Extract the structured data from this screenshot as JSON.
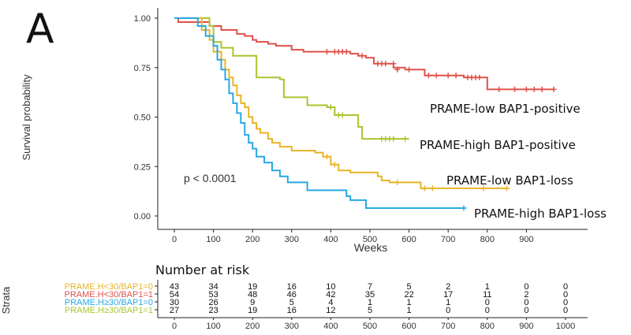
{
  "panel_label": "A",
  "chart_data": {
    "type": "line",
    "subtype": "kaplan-meier",
    "xlabel": "Weeks",
    "ylabel": "Survival probability",
    "xlim": [
      -40,
      1050
    ],
    "ylim": [
      -0.05,
      1.05
    ],
    "xticks": [
      0,
      100,
      200,
      300,
      400,
      500,
      600,
      700,
      800,
      900
    ],
    "yticks": [
      "0.00",
      "0.25",
      "0.50",
      "0.75",
      "1.00"
    ],
    "grid": false,
    "annotation": "p < 0.0001",
    "series": [
      {
        "name": "PRAME-low BAP1-positive",
        "color": "#e0524b",
        "steps": [
          [
            0,
            1.0
          ],
          [
            10,
            0.98
          ],
          [
            60,
            0.98
          ],
          [
            90,
            0.96
          ],
          [
            120,
            0.94
          ],
          [
            160,
            0.92
          ],
          [
            180,
            0.91
          ],
          [
            200,
            0.89
          ],
          [
            210,
            0.88
          ],
          [
            240,
            0.87
          ],
          [
            260,
            0.86
          ],
          [
            300,
            0.84
          ],
          [
            330,
            0.83
          ],
          [
            370,
            0.83
          ],
          [
            400,
            0.83
          ],
          [
            450,
            0.82
          ],
          [
            470,
            0.81
          ],
          [
            490,
            0.8
          ],
          [
            510,
            0.77
          ],
          [
            560,
            0.75
          ],
          [
            590,
            0.74
          ],
          [
            640,
            0.71
          ],
          [
            700,
            0.71
          ],
          [
            740,
            0.7
          ],
          [
            800,
            0.64
          ],
          [
            970,
            0.64
          ]
        ],
        "censor": [
          [
            390,
            0.83
          ],
          [
            410,
            0.83
          ],
          [
            420,
            0.83
          ],
          [
            430,
            0.83
          ],
          [
            440,
            0.83
          ],
          [
            480,
            0.81
          ],
          [
            520,
            0.77
          ],
          [
            530,
            0.77
          ],
          [
            540,
            0.77
          ],
          [
            560,
            0.77
          ],
          [
            570,
            0.74
          ],
          [
            600,
            0.74
          ],
          [
            650,
            0.71
          ],
          [
            670,
            0.71
          ],
          [
            700,
            0.71
          ],
          [
            720,
            0.71
          ],
          [
            750,
            0.7
          ],
          [
            760,
            0.7
          ],
          [
            770,
            0.7
          ],
          [
            780,
            0.7
          ],
          [
            830,
            0.64
          ],
          [
            870,
            0.64
          ],
          [
            900,
            0.64
          ],
          [
            920,
            0.64
          ],
          [
            940,
            0.64
          ],
          [
            970,
            0.64
          ]
        ]
      },
      {
        "name": "PRAME-high BAP1-positive",
        "color": "#a8c62e",
        "steps": [
          [
            0,
            1.0
          ],
          [
            90,
            0.96
          ],
          [
            100,
            0.88
          ],
          [
            120,
            0.85
          ],
          [
            150,
            0.81
          ],
          [
            200,
            0.81
          ],
          [
            210,
            0.7
          ],
          [
            270,
            0.69
          ],
          [
            280,
            0.6
          ],
          [
            320,
            0.6
          ],
          [
            340,
            0.56
          ],
          [
            390,
            0.55
          ],
          [
            410,
            0.51
          ],
          [
            430,
            0.51
          ],
          [
            470,
            0.45
          ],
          [
            480,
            0.39
          ],
          [
            600,
            0.39
          ]
        ],
        "censor": [
          [
            400,
            0.55
          ],
          [
            420,
            0.51
          ],
          [
            430,
            0.51
          ],
          [
            530,
            0.39
          ],
          [
            540,
            0.39
          ],
          [
            550,
            0.39
          ],
          [
            560,
            0.39
          ],
          [
            590,
            0.39
          ]
        ]
      },
      {
        "name": "PRAME-low BAP1-loss",
        "color": "#e8b426",
        "steps": [
          [
            0,
            1.0
          ],
          [
            70,
            0.94
          ],
          [
            90,
            0.89
          ],
          [
            100,
            0.83
          ],
          [
            120,
            0.79
          ],
          [
            130,
            0.74
          ],
          [
            140,
            0.7
          ],
          [
            150,
            0.66
          ],
          [
            160,
            0.61
          ],
          [
            170,
            0.57
          ],
          [
            180,
            0.55
          ],
          [
            190,
            0.5
          ],
          [
            200,
            0.47
          ],
          [
            210,
            0.44
          ],
          [
            220,
            0.42
          ],
          [
            240,
            0.39
          ],
          [
            250,
            0.37
          ],
          [
            270,
            0.35
          ],
          [
            300,
            0.33
          ],
          [
            330,
            0.33
          ],
          [
            360,
            0.32
          ],
          [
            380,
            0.3
          ],
          [
            400,
            0.26
          ],
          [
            420,
            0.23
          ],
          [
            450,
            0.22
          ],
          [
            520,
            0.2
          ],
          [
            530,
            0.18
          ],
          [
            550,
            0.17
          ],
          [
            630,
            0.14
          ],
          [
            850,
            0.14
          ]
        ],
        "censor": [
          [
            390,
            0.3
          ],
          [
            410,
            0.26
          ],
          [
            570,
            0.17
          ],
          [
            640,
            0.14
          ],
          [
            660,
            0.14
          ],
          [
            790,
            0.14
          ],
          [
            850,
            0.14
          ]
        ]
      },
      {
        "name": "PRAME-high BAP1-loss",
        "color": "#28a8e2",
        "steps": [
          [
            0,
            1.0
          ],
          [
            60,
            0.96
          ],
          [
            80,
            0.91
          ],
          [
            100,
            0.86
          ],
          [
            110,
            0.79
          ],
          [
            120,
            0.74
          ],
          [
            130,
            0.69
          ],
          [
            140,
            0.62
          ],
          [
            150,
            0.57
          ],
          [
            160,
            0.52
          ],
          [
            170,
            0.47
          ],
          [
            180,
            0.41
          ],
          [
            190,
            0.37
          ],
          [
            200,
            0.34
          ],
          [
            210,
            0.3
          ],
          [
            230,
            0.27
          ],
          [
            250,
            0.23
          ],
          [
            270,
            0.2
          ],
          [
            290,
            0.17
          ],
          [
            340,
            0.13
          ],
          [
            440,
            0.1
          ],
          [
            450,
            0.08
          ],
          [
            490,
            0.04
          ],
          [
            740,
            0.04
          ]
        ],
        "censor": [
          [
            740,
            0.04
          ]
        ]
      }
    ]
  },
  "risk_table": {
    "title": "Number at risk",
    "strata_label": "Strata",
    "times": [
      "0",
      "100",
      "200",
      "300",
      "400",
      "500",
      "600",
      "700",
      "800",
      "900",
      "1000"
    ],
    "rows": [
      {
        "label": "PRAME.H<30/BAP1=0",
        "color": "#e8b426",
        "values": [
          "43",
          "34",
          "19",
          "16",
          "10",
          "7",
          "5",
          "2",
          "1",
          "0",
          "0"
        ]
      },
      {
        "label": "PRAME.H<30/BAP1=1",
        "color": "#e0524b",
        "values": [
          "54",
          "53",
          "48",
          "46",
          "42",
          "35",
          "22",
          "17",
          "11",
          "2",
          "0"
        ]
      },
      {
        "label": "PRAME.H≥30/BAP1=0",
        "color": "#28a8e2",
        "values": [
          "30",
          "26",
          "9",
          "5",
          "4",
          "1",
          "1",
          "1",
          "0",
          "0",
          "0"
        ]
      },
      {
        "label": "PRAME.H≥30/BAP1=1",
        "color": "#a8c62e",
        "values": [
          "27",
          "23",
          "19",
          "16",
          "12",
          "5",
          "1",
          "0",
          "0",
          "0",
          "0"
        ]
      }
    ]
  }
}
